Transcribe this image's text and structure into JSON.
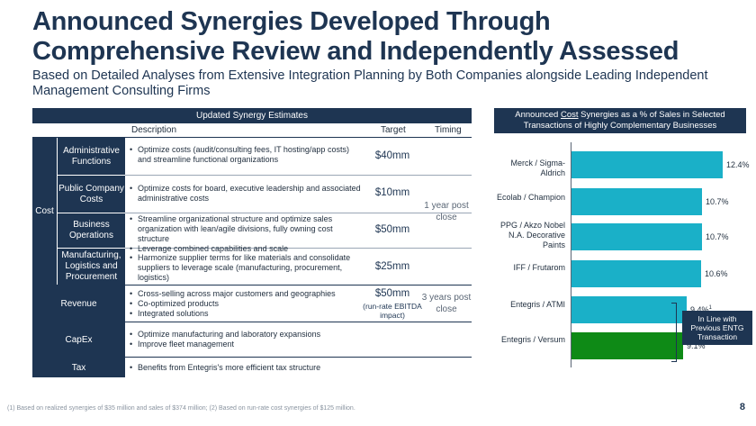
{
  "title_line1": "Announced Synergies Developed Through",
  "title_line2": "Comprehensive Review and Independently Assessed",
  "subtitle": "Based on Detailed Analyses from Extensive Integration Planning by Both Companies alongside Leading Independent Management Consulting Firms",
  "table": {
    "header": "Updated Synergy Estimates",
    "col_description": "Description",
    "col_target": "Target",
    "col_timing": "Timing",
    "cost_label": "Cost",
    "cost_rows": [
      {
        "label": "Administrative Functions",
        "bullets": [
          "Optimize costs (audit/consulting fees, IT hosting/app costs) and streamline functional organizations"
        ],
        "target": "$40mm"
      },
      {
        "label": "Public Company Costs",
        "bullets": [
          "Optimize costs for board, executive leadership and associated administrative costs"
        ],
        "target": "$10mm"
      },
      {
        "label": "Business Operations",
        "bullets": [
          "Streamline organizational structure and optimize sales organization with lean/agile divisions, fully owning cost structure",
          "Leverage combined capabilities and scale"
        ],
        "target": "$50mm"
      },
      {
        "label": "Manufacturing, Logistics and Procurement",
        "bullets": [
          "Harmonize supplier terms for like materials and consolidate suppliers to leverage scale (manufacturing, procurement, logistics)"
        ],
        "target": "$25mm"
      }
    ],
    "cost_timing": "1 year post close",
    "revenue": {
      "label": "Revenue",
      "bullets": [
        "Cross-selling across major customers and geographies",
        "Co-optimized products",
        "Integrated solutions"
      ],
      "target": "$50mm",
      "target_note": "(run-rate EBITDA impact)",
      "timing": "3 years post close"
    },
    "capex": {
      "label": "CapEx",
      "bullets": [
        "Optimize manufacturing and laboratory expansions",
        "Improve fleet management"
      ]
    },
    "tax": {
      "label": "Tax",
      "bullets": [
        "Benefits from Entegris's more efficient tax structure"
      ]
    }
  },
  "chart_data": {
    "type": "bar",
    "orientation": "horizontal",
    "title": "Announced Cost Synergies as a % of Sales in Selected Transactions of Highly Complementary Businesses",
    "categories": [
      "Merck / Sigma-Aldrich",
      "Ecolab / Champion",
      "PPG / Akzo Nobel N.A. Decorative Paints",
      "IFF / Frutarom",
      "Entegris / ATMI",
      "Entegris / Versum"
    ],
    "values": [
      12.4,
      10.7,
      10.7,
      10.6,
      9.4,
      9.1
    ],
    "value_labels": [
      "12.4%",
      "10.7%",
      "10.7%",
      "10.6%",
      "9.4%",
      "9.1%"
    ],
    "footnote_marks": [
      "",
      "",
      "",
      "",
      "1",
      "2"
    ],
    "bar_colors": [
      "#1ab0c8",
      "#1ab0c8",
      "#1ab0c8",
      "#1ab0c8",
      "#1ab0c8",
      "#0e8a16"
    ],
    "xlim": [
      0,
      14
    ],
    "callout": "In Line with Previous ENTG Transaction"
  },
  "footnote": "(1) Based on realized synergies of $35 million and sales of $374 million; (2) Based on run-rate cost synergies of $125 million.",
  "page_number": "8"
}
